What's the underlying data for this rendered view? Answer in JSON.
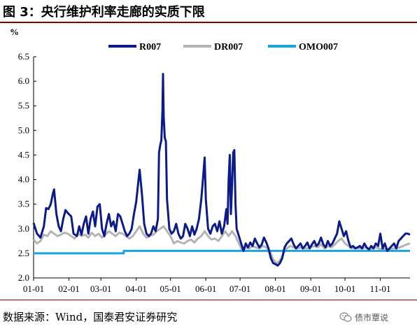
{
  "title": "图 3：央行维护利率走廊的实质下限",
  "source": "数据来源：Wind，国泰君安证券研究",
  "watermark": "债市覃说",
  "chart_data": {
    "type": "line",
    "ylabel": "%",
    "ylim": [
      2.0,
      6.5
    ],
    "yticks": [
      "2.0",
      "2.5",
      "3.0",
      "3.5",
      "4.0",
      "4.5",
      "5.0",
      "5.5",
      "6.0",
      "6.5"
    ],
    "xticks": [
      "01-01",
      "02-01",
      "03-01",
      "04-01",
      "05-01",
      "06-01",
      "07-01",
      "08-01",
      "09-01",
      "10-01",
      "11-01"
    ],
    "xlim": [
      0,
      330
    ],
    "xtick_positions": [
      0,
      31,
      59,
      90,
      120,
      151,
      181,
      212,
      243,
      273,
      304
    ],
    "legend_position": "top-center",
    "grid": false,
    "series": [
      {
        "name": "R007",
        "color": "#0d1a8c",
        "points": [
          [
            0,
            3.12
          ],
          [
            3,
            2.9
          ],
          [
            6,
            2.82
          ],
          [
            9,
            3.05
          ],
          [
            11,
            3.42
          ],
          [
            13,
            3.4
          ],
          [
            15,
            3.5
          ],
          [
            17,
            3.72
          ],
          [
            18,
            3.8
          ],
          [
            20,
            3.3
          ],
          [
            22,
            3.05
          ],
          [
            24,
            2.95
          ],
          [
            26,
            3.2
          ],
          [
            28,
            3.38
          ],
          [
            30,
            3.32
          ],
          [
            33,
            3.25
          ],
          [
            35,
            2.9
          ],
          [
            38,
            2.85
          ],
          [
            40,
            3.05
          ],
          [
            42,
            2.88
          ],
          [
            44,
            3.1
          ],
          [
            46,
            3.25
          ],
          [
            48,
            2.9
          ],
          [
            50,
            3.2
          ],
          [
            52,
            3.35
          ],
          [
            54,
            3.05
          ],
          [
            56,
            3.45
          ],
          [
            58,
            3.5
          ],
          [
            60,
            3.0
          ],
          [
            62,
            2.85
          ],
          [
            64,
            3.1
          ],
          [
            66,
            3.3
          ],
          [
            68,
            3.05
          ],
          [
            70,
            3.15
          ],
          [
            72,
            2.95
          ],
          [
            74,
            3.3
          ],
          [
            76,
            3.25
          ],
          [
            78,
            3.1
          ],
          [
            80,
            2.95
          ],
          [
            82,
            2.85
          ],
          [
            84,
            2.9
          ],
          [
            86,
            3.0
          ],
          [
            88,
            3.3
          ],
          [
            90,
            3.55
          ],
          [
            92,
            4.0
          ],
          [
            93,
            4.2
          ],
          [
            95,
            3.7
          ],
          [
            97,
            3.1
          ],
          [
            99,
            2.9
          ],
          [
            101,
            2.85
          ],
          [
            103,
            2.9
          ],
          [
            105,
            3.05
          ],
          [
            107,
            2.95
          ],
          [
            109,
            3.2
          ],
          [
            110,
            4.55
          ],
          [
            111,
            4.7
          ],
          [
            112,
            4.8
          ],
          [
            113,
            5.4
          ],
          [
            113.5,
            6.15
          ],
          [
            114,
            5.3
          ],
          [
            115,
            4.85
          ],
          [
            116,
            4.78
          ],
          [
            117,
            3.6
          ],
          [
            119,
            3.0
          ],
          [
            121,
            2.9
          ],
          [
            123,
            2.95
          ],
          [
            125,
            3.1
          ],
          [
            127,
            2.9
          ],
          [
            129,
            2.8
          ],
          [
            131,
            2.85
          ],
          [
            133,
            3.1
          ],
          [
            135,
            3.0
          ],
          [
            137,
            2.85
          ],
          [
            139,
            3.05
          ],
          [
            141,
            2.88
          ],
          [
            143,
            3.0
          ],
          [
            145,
            3.2
          ],
          [
            147,
            3.6
          ],
          [
            149,
            4.15
          ],
          [
            150,
            4.45
          ],
          [
            151,
            3.6
          ],
          [
            153,
            3.0
          ],
          [
            155,
            2.9
          ],
          [
            157,
            3.05
          ],
          [
            159,
            3.1
          ],
          [
            161,
            2.95
          ],
          [
            163,
            3.15
          ],
          [
            165,
            2.9
          ],
          [
            167,
            3.05
          ],
          [
            169,
            3.4
          ],
          [
            170,
            3.1
          ],
          [
            171,
            4.0
          ],
          [
            172,
            4.5
          ],
          [
            173,
            3.3
          ],
          [
            174,
            3.9
          ],
          [
            175,
            4.55
          ],
          [
            176,
            4.6
          ],
          [
            177,
            3.5
          ],
          [
            178,
            3.0
          ],
          [
            180,
            2.85
          ],
          [
            182,
            2.7
          ],
          [
            184,
            2.55
          ],
          [
            186,
            2.7
          ],
          [
            188,
            2.62
          ],
          [
            190,
            2.72
          ],
          [
            192,
            2.65
          ],
          [
            194,
            2.8
          ],
          [
            196,
            2.7
          ],
          [
            198,
            2.62
          ],
          [
            200,
            2.68
          ],
          [
            202,
            2.82
          ],
          [
            204,
            2.72
          ],
          [
            206,
            2.6
          ],
          [
            208,
            2.4
          ],
          [
            210,
            2.3
          ],
          [
            212,
            2.28
          ],
          [
            214,
            2.25
          ],
          [
            216,
            2.3
          ],
          [
            218,
            2.4
          ],
          [
            220,
            2.62
          ],
          [
            222,
            2.7
          ],
          [
            224,
            2.75
          ],
          [
            226,
            2.8
          ],
          [
            228,
            2.68
          ],
          [
            230,
            2.6
          ],
          [
            232,
            2.65
          ],
          [
            234,
            2.7
          ],
          [
            236,
            2.6
          ],
          [
            238,
            2.65
          ],
          [
            240,
            2.72
          ],
          [
            242,
            2.6
          ],
          [
            244,
            2.68
          ],
          [
            246,
            2.75
          ],
          [
            248,
            2.65
          ],
          [
            250,
            2.7
          ],
          [
            252,
            2.82
          ],
          [
            254,
            2.68
          ],
          [
            256,
            2.62
          ],
          [
            258,
            2.75
          ],
          [
            260,
            2.65
          ],
          [
            262,
            2.7
          ],
          [
            264,
            2.8
          ],
          [
            266,
            2.9
          ],
          [
            268,
            3.15
          ],
          [
            270,
            3.0
          ],
          [
            272,
            2.85
          ],
          [
            274,
            2.95
          ],
          [
            276,
            2.75
          ],
          [
            278,
            2.62
          ],
          [
            280,
            2.65
          ],
          [
            282,
            2.6
          ],
          [
            284,
            2.62
          ],
          [
            286,
            2.65
          ],
          [
            288,
            2.6
          ],
          [
            290,
            2.7
          ],
          [
            292,
            2.62
          ],
          [
            294,
            2.58
          ],
          [
            296,
            2.65
          ],
          [
            298,
            2.6
          ],
          [
            300,
            2.7
          ],
          [
            302,
            2.65
          ],
          [
            304,
            2.9
          ],
          [
            306,
            2.6
          ],
          [
            308,
            2.7
          ],
          [
            310,
            2.55
          ],
          [
            312,
            2.6
          ],
          [
            314,
            2.65
          ],
          [
            316,
            2.7
          ],
          [
            318,
            2.6
          ],
          [
            320,
            2.75
          ],
          [
            322,
            2.8
          ],
          [
            324,
            2.85
          ],
          [
            326,
            2.9
          ],
          [
            328,
            2.9
          ],
          [
            330,
            2.88
          ]
        ]
      },
      {
        "name": "DR007",
        "color": "#b4b4b4",
        "points": [
          [
            0,
            2.78
          ],
          [
            3,
            2.7
          ],
          [
            6,
            2.75
          ],
          [
            9,
            2.88
          ],
          [
            12,
            2.85
          ],
          [
            15,
            2.95
          ],
          [
            18,
            2.9
          ],
          [
            21,
            2.85
          ],
          [
            24,
            2.88
          ],
          [
            27,
            2.92
          ],
          [
            30,
            2.9
          ],
          [
            33,
            2.85
          ],
          [
            36,
            2.8
          ],
          [
            39,
            2.9
          ],
          [
            42,
            2.85
          ],
          [
            45,
            2.88
          ],
          [
            48,
            2.82
          ],
          [
            51,
            2.92
          ],
          [
            54,
            2.85
          ],
          [
            57,
            2.9
          ],
          [
            60,
            2.82
          ],
          [
            63,
            2.88
          ],
          [
            66,
            2.95
          ],
          [
            69,
            2.9
          ],
          [
            72,
            2.85
          ],
          [
            75,
            2.92
          ],
          [
            78,
            2.9
          ],
          [
            81,
            2.85
          ],
          [
            84,
            2.8
          ],
          [
            87,
            2.85
          ],
          [
            90,
            2.95
          ],
          [
            93,
            3.05
          ],
          [
            96,
            2.9
          ],
          [
            99,
            2.82
          ],
          [
            102,
            2.85
          ],
          [
            105,
            2.88
          ],
          [
            108,
            2.95
          ],
          [
            111,
            3.0
          ],
          [
            114,
            3.05
          ],
          [
            117,
            2.95
          ],
          [
            120,
            2.85
          ],
          [
            123,
            2.7
          ],
          [
            126,
            2.75
          ],
          [
            129,
            2.72
          ],
          [
            132,
            2.7
          ],
          [
            135,
            2.75
          ],
          [
            138,
            2.78
          ],
          [
            141,
            2.72
          ],
          [
            144,
            2.8
          ],
          [
            147,
            2.85
          ],
          [
            150,
            2.95
          ],
          [
            153,
            2.85
          ],
          [
            156,
            2.78
          ],
          [
            159,
            2.8
          ],
          [
            162,
            2.75
          ],
          [
            165,
            2.85
          ],
          [
            168,
            2.95
          ],
          [
            171,
            2.85
          ],
          [
            174,
            2.95
          ],
          [
            177,
            2.85
          ],
          [
            180,
            2.7
          ],
          [
            183,
            2.55
          ],
          [
            186,
            2.62
          ],
          [
            189,
            2.6
          ],
          [
            192,
            2.65
          ],
          [
            195,
            2.62
          ],
          [
            198,
            2.6
          ],
          [
            201,
            2.65
          ],
          [
            204,
            2.62
          ],
          [
            207,
            2.55
          ],
          [
            210,
            2.38
          ],
          [
            213,
            2.3
          ],
          [
            216,
            2.35
          ],
          [
            219,
            2.5
          ],
          [
            222,
            2.6
          ],
          [
            225,
            2.65
          ],
          [
            228,
            2.62
          ],
          [
            231,
            2.6
          ],
          [
            234,
            2.62
          ],
          [
            237,
            2.6
          ],
          [
            240,
            2.6
          ],
          [
            243,
            2.62
          ],
          [
            246,
            2.65
          ],
          [
            249,
            2.62
          ],
          [
            252,
            2.68
          ],
          [
            255,
            2.6
          ],
          [
            258,
            2.65
          ],
          [
            261,
            2.62
          ],
          [
            264,
            2.68
          ],
          [
            267,
            2.75
          ],
          [
            270,
            2.8
          ],
          [
            273,
            2.7
          ],
          [
            276,
            2.65
          ],
          [
            279,
            2.6
          ],
          [
            282,
            2.62
          ],
          [
            285,
            2.6
          ],
          [
            288,
            2.6
          ],
          [
            291,
            2.62
          ],
          [
            294,
            2.58
          ],
          [
            297,
            2.6
          ],
          [
            300,
            2.62
          ],
          [
            303,
            2.6
          ],
          [
            306,
            2.58
          ],
          [
            309,
            2.6
          ],
          [
            312,
            2.58
          ],
          [
            315,
            2.6
          ],
          [
            318,
            2.6
          ],
          [
            321,
            2.62
          ],
          [
            324,
            2.65
          ],
          [
            327,
            2.68
          ],
          [
            330,
            2.7
          ]
        ]
      },
      {
        "name": "OMO007",
        "color": "#1fa3dc",
        "points": [
          [
            0,
            2.5
          ],
          [
            79,
            2.5
          ],
          [
            79,
            2.55
          ],
          [
            330,
            2.55
          ]
        ]
      }
    ]
  }
}
